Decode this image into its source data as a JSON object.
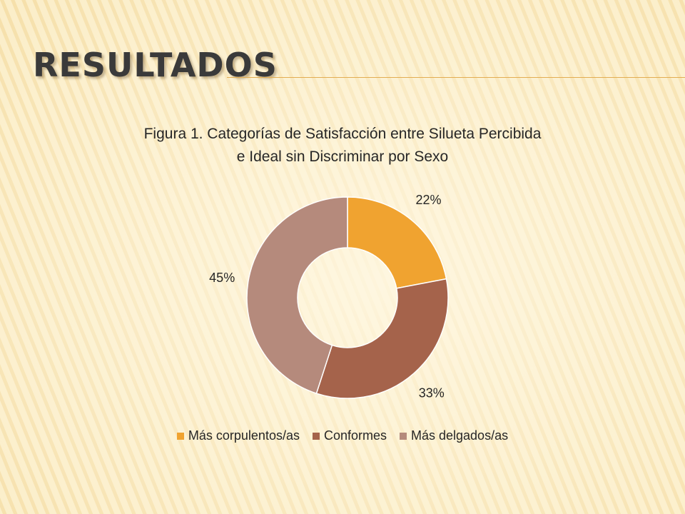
{
  "slide": {
    "title": "Resultados"
  },
  "colors": {
    "background": "#fbeec9",
    "stripe": "#f1d592",
    "accent_line": "#e2ad52"
  },
  "chart_data": {
    "type": "pie",
    "donut": true,
    "title_lines": [
      "Figura 1. Categorías de Satisfacción entre Silueta Percibida",
      "e Ideal sin Discriminar por Sexo"
    ],
    "categories": [
      "Más corpulentos/as",
      "Conformes",
      "Más delgados/as"
    ],
    "values": [
      22,
      33,
      45
    ],
    "data_labels": [
      "22%",
      "33%",
      "45%"
    ],
    "colors": [
      "#f0a330",
      "#a5634b",
      "#b58a7c"
    ],
    "start_angle": "12 o'clock, clockwise",
    "legend_position": "bottom"
  }
}
